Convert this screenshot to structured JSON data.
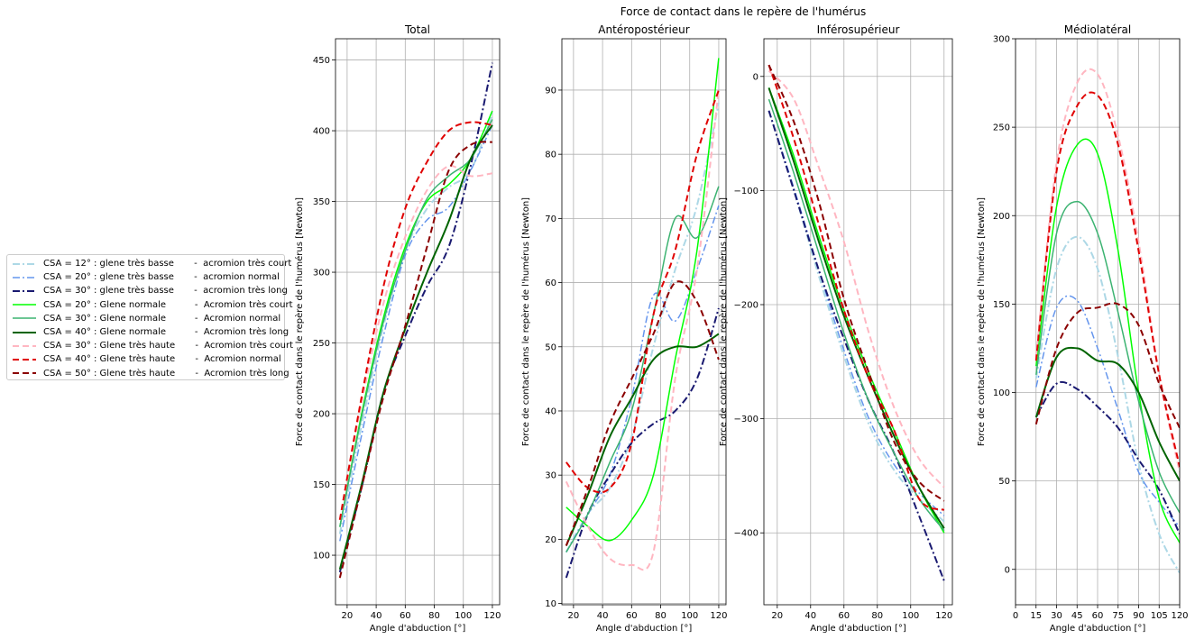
{
  "figure_title": "Force de contact dans le repère de l'humérus",
  "chart_data": [
    {
      "type": "line",
      "title": "Total",
      "xlabel": "Angle d'abduction [°]",
      "ylabel": "Force de contact dans le repère de l'humérus [Newton]",
      "xlim": [
        12,
        125
      ],
      "ylim": [
        65,
        465
      ],
      "xticks": [
        20,
        40,
        60,
        80,
        100,
        120
      ],
      "yticks": [
        100,
        150,
        200,
        250,
        300,
        350,
        400,
        450
      ],
      "grid": true,
      "x": [
        15,
        30,
        45,
        60,
        75,
        90,
        105,
        120
      ],
      "series": [
        {
          "key": "s1",
          "values": [
            115,
            192,
            262,
            315,
            345,
            360,
            372,
            412
          ]
        },
        {
          "key": "s2",
          "values": [
            110,
            185,
            255,
            312,
            337,
            346,
            372,
            404
          ]
        },
        {
          "key": "s3",
          "values": [
            88,
            148,
            215,
            255,
            290,
            318,
            375,
            448
          ]
        },
        {
          "key": "s4",
          "values": [
            120,
            200,
            268,
            318,
            350,
            362,
            380,
            414
          ]
        },
        {
          "key": "s5",
          "values": [
            120,
            198,
            265,
            315,
            352,
            368,
            380,
            408
          ]
        },
        {
          "key": "s6",
          "values": [
            90,
            150,
            215,
            260,
            300,
            336,
            380,
            404
          ]
        },
        {
          "key": "s7",
          "values": [
            125,
            208,
            278,
            325,
            358,
            375,
            368,
            370
          ]
        },
        {
          "key": "s8",
          "values": [
            125,
            212,
            290,
            345,
            378,
            400,
            406,
            404
          ]
        },
        {
          "key": "s9",
          "values": [
            84,
            148,
            212,
            262,
            318,
            372,
            390,
            392
          ]
        }
      ]
    },
    {
      "type": "line",
      "title": "Antéropostérieur",
      "xlabel": "Angle d'abduction [°]",
      "ylabel": "Force de contact dans le repère de l'humérus [Newton]",
      "xlim": [
        12,
        125
      ],
      "ylim": [
        9.8,
        98
      ],
      "xticks": [
        20,
        40,
        60,
        80,
        100,
        120
      ],
      "yticks": [
        10,
        20,
        30,
        40,
        50,
        60,
        70,
        80,
        90
      ],
      "grid": true,
      "x": [
        15,
        30,
        45,
        60,
        75,
        90,
        105,
        120
      ],
      "series": [
        {
          "key": "s1",
          "values": [
            18,
            24,
            28,
            36,
            50,
            62,
            72,
            88
          ]
        },
        {
          "key": "s2",
          "values": [
            18,
            24,
            30,
            42,
            58,
            54,
            62,
            72
          ]
        },
        {
          "key": "s3",
          "values": [
            14,
            24,
            30,
            35,
            38,
            40,
            45,
            56
          ]
        },
        {
          "key": "s4",
          "values": [
            25,
            22,
            19.8,
            23,
            30,
            48,
            65,
            95
          ]
        },
        {
          "key": "s5",
          "values": [
            18,
            24,
            32,
            40,
            55,
            70,
            67,
            75
          ]
        },
        {
          "key": "s6",
          "values": [
            19,
            27,
            36,
            42,
            48,
            50,
            50,
            52
          ]
        },
        {
          "key": "s7",
          "values": [
            29,
            22,
            17,
            16,
            18,
            45,
            62,
            90
          ]
        },
        {
          "key": "s8",
          "values": [
            32,
            28,
            28,
            35,
            55,
            65,
            80,
            90
          ]
        },
        {
          "key": "s9",
          "values": [
            19,
            28,
            38,
            45,
            52,
            60,
            57,
            48
          ]
        }
      ]
    },
    {
      "type": "line",
      "title": "Inférosupérieur",
      "xlabel": "Angle d'abduction [°]",
      "ylabel": "Force de contact dans le repère de l'humérus [Newton]",
      "xlim": [
        12,
        125
      ],
      "ylim": [
        -463,
        33
      ],
      "xticks": [
        20,
        40,
        60,
        80,
        100,
        120
      ],
      "yticks": [
        -400,
        -300,
        -200,
        -100,
        0
      ],
      "grid": true,
      "x": [
        15,
        30,
        45,
        60,
        75,
        90,
        105,
        120
      ],
      "series": [
        {
          "key": "s1",
          "values": [
            -30,
            -100,
            -175,
            -245,
            -305,
            -345,
            -370,
            -390
          ]
        },
        {
          "key": "s2",
          "values": [
            -30,
            -98,
            -170,
            -240,
            -300,
            -340,
            -365,
            -385
          ]
        },
        {
          "key": "s3",
          "values": [
            -30,
            -100,
            -170,
            -230,
            -285,
            -330,
            -385,
            -442
          ]
        },
        {
          "key": "s4",
          "values": [
            -10,
            -70,
            -140,
            -205,
            -260,
            -310,
            -360,
            -400
          ]
        },
        {
          "key": "s5",
          "values": [
            -20,
            -85,
            -155,
            -225,
            -285,
            -330,
            -370,
            -398
          ]
        },
        {
          "key": "s6",
          "values": [
            -10,
            -75,
            -145,
            -210,
            -265,
            -315,
            -360,
            -396
          ]
        },
        {
          "key": "s7",
          "values": [
            5,
            -20,
            -80,
            -145,
            -225,
            -290,
            -335,
            -360
          ]
        },
        {
          "key": "s8",
          "values": [
            10,
            -55,
            -130,
            -205,
            -265,
            -310,
            -370,
            -380
          ]
        },
        {
          "key": "s9",
          "values": [
            10,
            -40,
            -110,
            -195,
            -260,
            -320,
            -355,
            -372
          ]
        }
      ]
    },
    {
      "type": "line",
      "title": "Médiolatéral",
      "xlabel": "Angle d'abduction [°]",
      "ylabel": "Force de contact dans le repère de l'humérus [Newton]",
      "xlim": [
        0,
        120
      ],
      "ylim": [
        -20,
        300
      ],
      "xticks": [
        0,
        15,
        30,
        45,
        60,
        75,
        90,
        105,
        120
      ],
      "yticks": [
        0,
        50,
        100,
        150,
        200,
        250,
        300
      ],
      "grid": true,
      "x": [
        15,
        30,
        45,
        60,
        75,
        90,
        105,
        120
      ],
      "series": [
        {
          "key": "s1",
          "values": [
            108,
            170,
            188,
            170,
            120,
            60,
            20,
            -2
          ]
        },
        {
          "key": "s2",
          "values": [
            103,
            148,
            152,
            125,
            90,
            55,
            38,
            24
          ]
        },
        {
          "key": "s3",
          "values": [
            86,
            105,
            102,
            92,
            80,
            62,
            45,
            20
          ]
        },
        {
          "key": "s4",
          "values": [
            115,
            205,
            240,
            235,
            180,
            100,
            40,
            15
          ]
        },
        {
          "key": "s5",
          "values": [
            110,
            190,
            208,
            190,
            145,
            95,
            55,
            32
          ]
        },
        {
          "key": "s6",
          "values": [
            86,
            120,
            125,
            118,
            116,
            100,
            72,
            50
          ]
        },
        {
          "key": "s7",
          "values": [
            120,
            230,
            275,
            280,
            245,
            185,
            110,
            55
          ]
        },
        {
          "key": "s8",
          "values": [
            118,
            225,
            262,
            268,
            240,
            180,
            110,
            58
          ]
        },
        {
          "key": "s9",
          "values": [
            82,
            125,
            145,
            148,
            150,
            138,
            105,
            80
          ]
        }
      ]
    }
  ],
  "legend": {
    "placement": "left",
    "entries": [
      {
        "key": "s1",
        "label": "CSA = 12° : glene très basse       -  acromion très court",
        "color": "#add8e6",
        "dash": "dashdot",
        "width": 2
      },
      {
        "key": "s2",
        "label": "CSA = 20° : glene très basse       -  acromion normal",
        "color": "#6495ed",
        "dash": "dashdot",
        "width": 1.5
      },
      {
        "key": "s3",
        "label": "CSA = 30° : glene très basse       -  acromion très long",
        "color": "#191970",
        "dash": "dashdot",
        "width": 2
      },
      {
        "key": "s4",
        "label": "CSA = 20° : Glene normale          -  Acromion très court",
        "color": "#00ff00",
        "dash": "solid",
        "width": 1.5
      },
      {
        "key": "s5",
        "label": "CSA = 30° : Glene normale          -  Acromion normal",
        "color": "#3cb371",
        "dash": "solid",
        "width": 1.5
      },
      {
        "key": "s6",
        "label": "CSA = 40° : Glene normale          -  Acromion très long",
        "color": "#006400",
        "dash": "solid",
        "width": 2
      },
      {
        "key": "s7",
        "label": "CSA = 30° : Glene très haute       -  Acromion très court",
        "color": "#ffb6c1",
        "dash": "dashed",
        "width": 2
      },
      {
        "key": "s8",
        "label": "CSA = 40° : Glene très haute       -  Acromion normal",
        "color": "#e00000",
        "dash": "dashed",
        "width": 2
      },
      {
        "key": "s9",
        "label": "CSA = 50° : Glene très haute       -  Acromion très long",
        "color": "#8b0000",
        "dash": "dashed",
        "width": 2
      }
    ]
  }
}
